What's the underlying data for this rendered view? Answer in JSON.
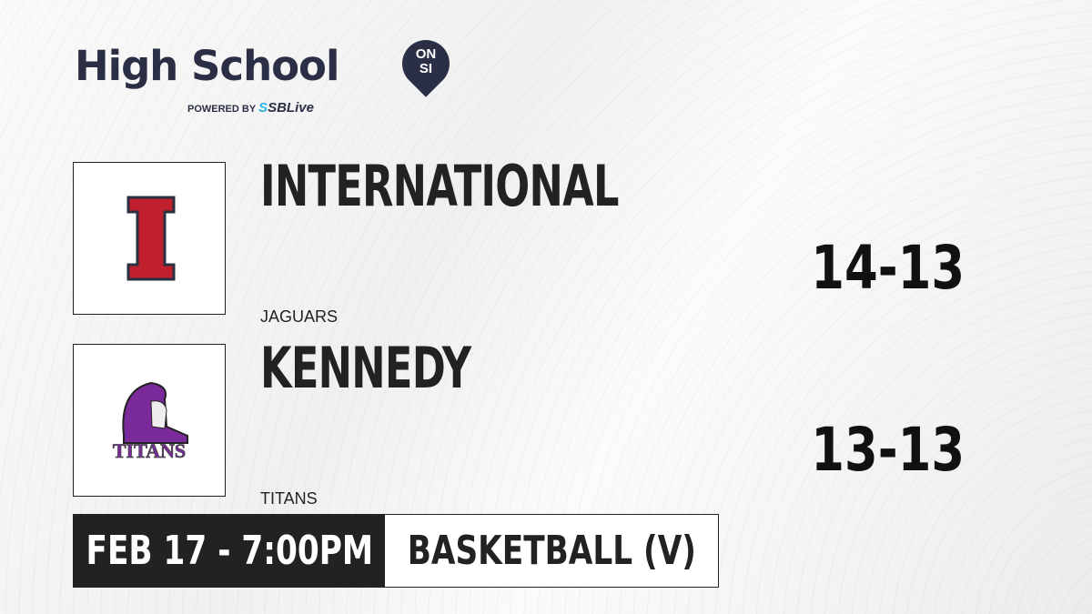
{
  "brand": {
    "title": "High School",
    "badge_top": "ON",
    "badge_bottom": "SI",
    "powered_by": "POWERED BY",
    "partner_prefix": "S",
    "partner": "SBLive"
  },
  "teams": [
    {
      "name": "INTERNATIONAL",
      "mascot": "JAGUARS",
      "record": "14-13",
      "logo_letter": "I",
      "logo_color": "#c0202e"
    },
    {
      "name": "KENNEDY",
      "mascot": "TITANS",
      "record": "13-13",
      "logo_text": "TITANS",
      "logo_color": "#7a2a9a"
    }
  ],
  "game": {
    "datetime": "FEB 17 - 7:00PM",
    "sport": "BASKETBALL (V)"
  }
}
